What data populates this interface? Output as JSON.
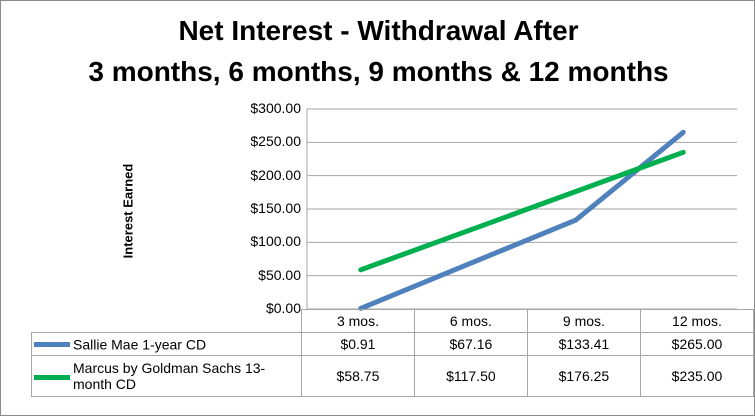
{
  "chart_data": {
    "type": "line",
    "title": "Net Interest - Withdrawal After",
    "subtitle": "3 months, 6 months, 9 months & 12 months",
    "ylabel": "Interest Earned",
    "xlabel": "",
    "ylim": [
      0,
      300
    ],
    "yticks": [
      "$0.00",
      "$50.00",
      "$100.00",
      "$150.00",
      "$200.00",
      "$250.00",
      "$300.00"
    ],
    "categories": [
      "3 mos.",
      "6 mos.",
      "9 mos.",
      "12 mos."
    ],
    "grid": "horizontal",
    "legend": "data-table",
    "series": [
      {
        "name": "Sallie Mae 1-year CD",
        "color": "#4f81bd",
        "values": [
          0.91,
          67.16,
          133.41,
          265.0
        ],
        "labels": [
          "$0.91",
          "$67.16",
          "$133.41",
          "$265.00"
        ]
      },
      {
        "name": "Marcus by Goldman Sachs 13-month CD",
        "color": "#00b050",
        "values": [
          58.75,
          117.5,
          176.25,
          235.0
        ],
        "labels": [
          "$58.75",
          "$117.50",
          "$176.25",
          "$235.00"
        ]
      }
    ]
  }
}
